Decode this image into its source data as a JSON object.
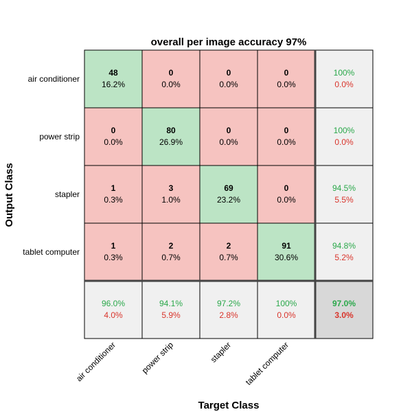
{
  "chart_data": {
    "type": "heatmap",
    "title": "overall per image accuracy 97%",
    "xlabel": "Target Class",
    "ylabel": "Output Class",
    "classes": [
      "air conditioner",
      "power strip",
      "stapler",
      "tablet computer"
    ],
    "matrix": [
      {
        "counts": [
          48,
          0,
          0,
          0
        ],
        "percents": [
          "16.2%",
          "0.0%",
          "0.0%",
          "0.0%"
        ],
        "row_correct": "100%",
        "row_error": "0.0%"
      },
      {
        "counts": [
          0,
          80,
          0,
          0
        ],
        "percents": [
          "0.0%",
          "26.9%",
          "0.0%",
          "0.0%"
        ],
        "row_correct": "100%",
        "row_error": "0.0%"
      },
      {
        "counts": [
          1,
          3,
          69,
          0
        ],
        "percents": [
          "0.3%",
          "1.0%",
          "23.2%",
          "0.0%"
        ],
        "row_correct": "94.5%",
        "row_error": "5.5%"
      },
      {
        "counts": [
          1,
          2,
          2,
          91
        ],
        "percents": [
          "0.3%",
          "0.7%",
          "0.7%",
          "30.6%"
        ],
        "row_correct": "94.8%",
        "row_error": "5.2%"
      }
    ],
    "column_summary": {
      "correct": [
        "96.0%",
        "94.1%",
        "97.2%",
        "100%"
      ],
      "error": [
        "4.0%",
        "5.9%",
        "2.8%",
        "0.0%"
      ]
    },
    "overall": {
      "correct": "97.0%",
      "error": "3.0%"
    }
  },
  "colors": {
    "diagonal": "#bce4c5",
    "off_diagonal": "#f6c3c0",
    "summary": "#f0f0f0",
    "overall": "#d8d8d8",
    "correct_text": "#2aa84a",
    "error_text": "#d9342b",
    "grid": "#000000"
  }
}
